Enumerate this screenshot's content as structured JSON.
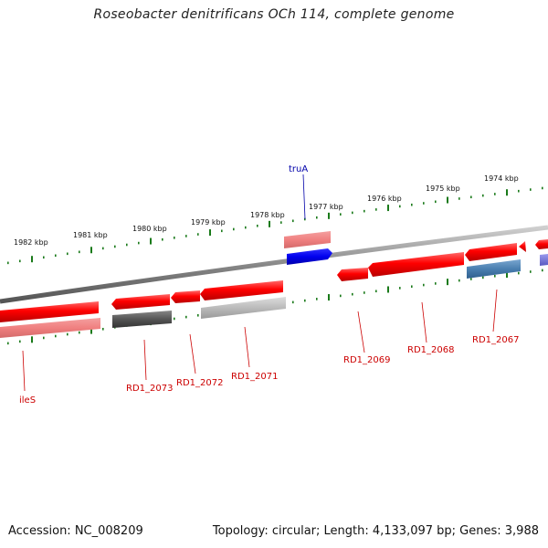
{
  "title": "Roseobacter denitrificans OCh 114, complete genome",
  "footer": {
    "accession": "Accession: NC_008209",
    "topology": "Topology: circular; Length: 4,133,097 bp; Genes: 3,988"
  },
  "colors": {
    "red_gene": "#ff0000",
    "pink_gene": "#f08080",
    "grey_dark": "#555555",
    "grey_light": "#bbbbbb",
    "blue_gene": "#0000ee",
    "steel_gene": "#4a7fb0",
    "purple_gene": "#7777dd",
    "tick_green": "#1a7a1a",
    "label_red": "#cc0000",
    "label_blue": "#0000aa",
    "backbone": "#888888"
  },
  "scale": {
    "labels": [
      "1982 kbp",
      "1981 kbp",
      "1980 kbp",
      "1979 kbp",
      "1978 kbp",
      "1977 kbp",
      "1976 kbp",
      "1975 kbp",
      "1974 kbp"
    ]
  },
  "genes": [
    {
      "name": "ileS"
    },
    {
      "name": "RD1_2073"
    },
    {
      "name": "RD1_2072"
    },
    {
      "name": "RD1_2071"
    },
    {
      "name": "truA"
    },
    {
      "name": "RD1_2069"
    },
    {
      "name": "RD1_2068"
    },
    {
      "name": "RD1_2067"
    }
  ]
}
